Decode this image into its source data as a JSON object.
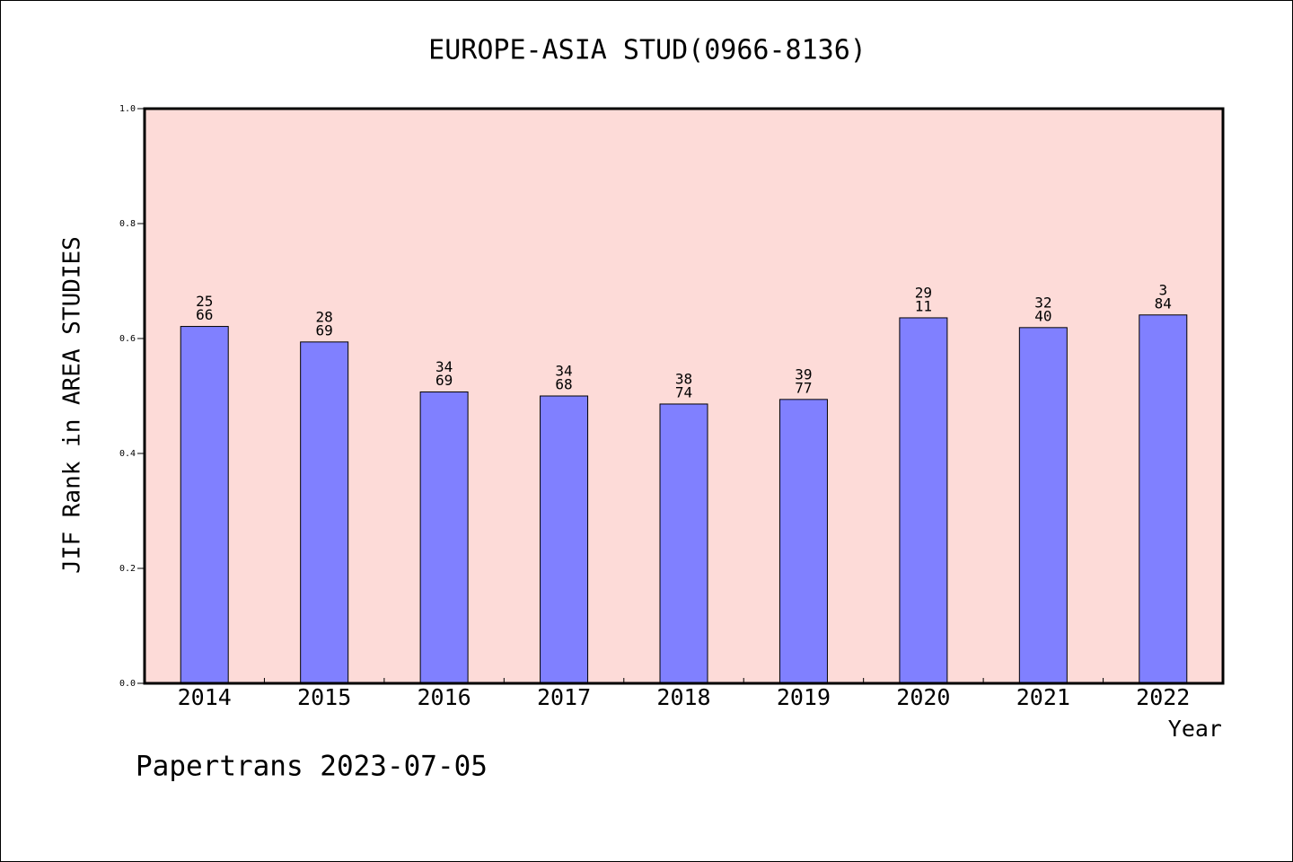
{
  "chart_data": {
    "type": "bar",
    "title": "EUROPE-ASIA STUD(0966-8136)",
    "ylabel": "JIF Rank in AREA STUDIES",
    "xlabel": "Year",
    "categories": [
      "2014",
      "2015",
      "2016",
      "2017",
      "2018",
      "2019",
      "2020",
      "2021",
      "2022"
    ],
    "values": [
      0.621,
      0.594,
      0.507,
      0.5,
      0.486,
      0.494,
      0.636,
      0.619,
      0.641
    ],
    "bar_labels": [
      [
        "25",
        "66"
      ],
      [
        "28",
        "69"
      ],
      [
        "34",
        "69"
      ],
      [
        "34",
        "68"
      ],
      [
        "38",
        "74"
      ],
      [
        "39",
        "77"
      ],
      [
        "29",
        "11"
      ],
      [
        "32",
        "40"
      ],
      [
        "3",
        "84"
      ]
    ],
    "ylim": [
      0.0,
      1.0
    ],
    "yticks": [
      "0.0",
      "0.2",
      "0.4",
      "0.6",
      "0.8",
      "1.0"
    ],
    "grid": false,
    "colors": {
      "plot_background": "#fddbd8",
      "bar_fill": "#8080ff",
      "bar_stroke": "#000000"
    }
  },
  "footer": "Papertrans 2023-07-05"
}
